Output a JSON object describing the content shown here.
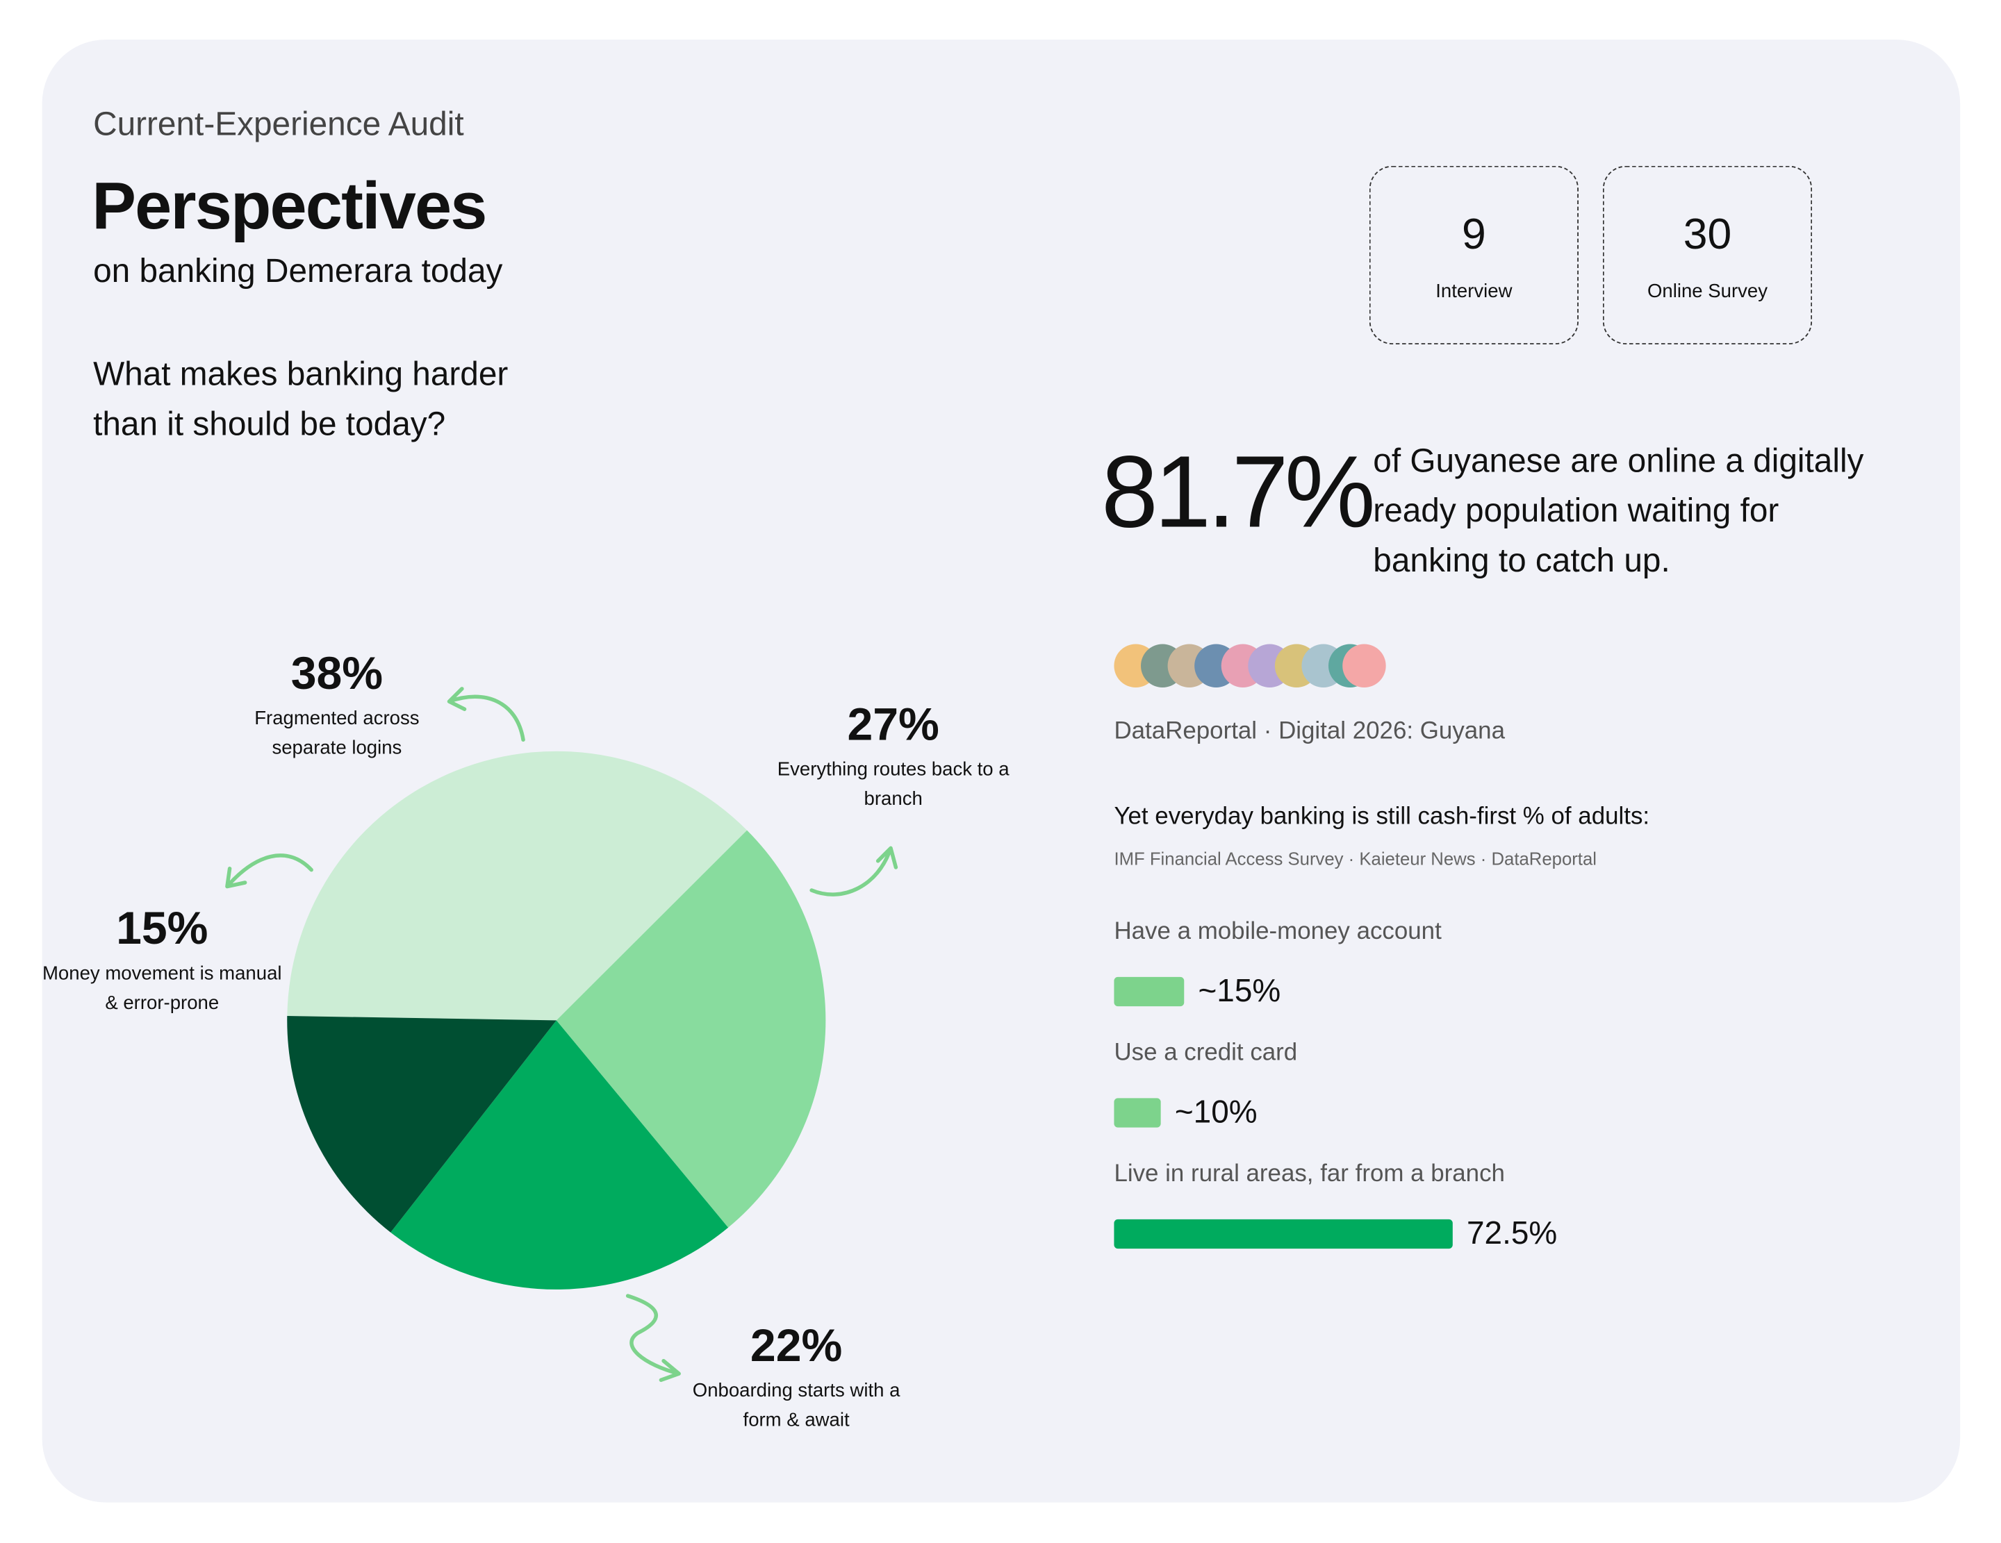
{
  "header": {
    "eyebrow": "Current-Experience Audit",
    "title": "Perspectives",
    "subtitle": "on banking Demerara today",
    "question": [
      "What makes banking harder",
      "than it should be today?"
    ]
  },
  "stats": [
    {
      "value": "9",
      "label": "Interview"
    },
    {
      "value": "30",
      "label": "Online Survey"
    }
  ],
  "highlight": {
    "figure": "81.7%",
    "text": [
      "of Guyanese are online a digitally",
      "ready population waiting for",
      "banking to catch up."
    ],
    "source": "DataReportal · Digital 2026: Guyana"
  },
  "chart_data": [
    {
      "type": "pie",
      "categories": [
        "Fragmented across separate logins",
        "Everything routes back to a branch",
        "Onboarding starts with a form & await",
        "Money movement is manual & error-prone"
      ],
      "values": [
        38,
        27,
        22,
        15
      ],
      "value_labels": [
        "38%",
        "27%",
        "22%",
        "15%"
      ],
      "colors": [
        "#ccedd5",
        "#88dc9e",
        "#00ab5e",
        "#004f32"
      ]
    },
    {
      "type": "bar",
      "title": "Yet everyday banking is still cash-first  % of adults:",
      "subtitle": "IMF Financial Access Survey · Kaieteur News · DataReportal",
      "categories": [
        "Have a mobile-money account",
        "Use a credit card",
        "Live in rural areas, far from a branch"
      ],
      "values": [
        15,
        10,
        72.5
      ],
      "value_labels": [
        "~15%",
        "~10%",
        "72.5%"
      ],
      "colors": [
        "#7dd38c",
        "#7dd38c",
        "#00ab5e"
      ]
    }
  ]
}
